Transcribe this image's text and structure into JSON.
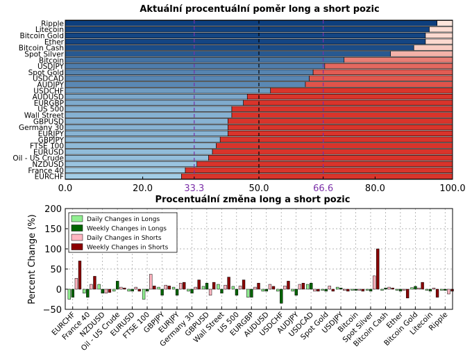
{
  "chart_data": [
    {
      "type": "bar",
      "orientation": "horizontal-stacked",
      "title": "Aktuální procentuální poměr long a short pozic",
      "categories": [
        "Ripple",
        "Litecoin",
        "Bitcoin Gold",
        "Ether",
        "Bitcoin Cash",
        "Spot Silver",
        "Bitcoin",
        "USDJPY",
        "Spot Gold",
        "USDCAD",
        "AUDJPY",
        "USDCHF",
        "AUDUSD",
        "EURGBP",
        "US 500",
        "Wall Street",
        "GBPUSD",
        "Germany 30",
        "EURJPY",
        "GBPJPY",
        "FTSE 100",
        "EURUSD",
        "Oil - US Crude",
        "NZDUSD",
        "France 40",
        "EURCHF"
      ],
      "series": [
        {
          "values": [
            96,
            94,
            93,
            93,
            90,
            84,
            72,
            67,
            64,
            63,
            62,
            53,
            47,
            46,
            43,
            43,
            42,
            42,
            42,
            40,
            39,
            38,
            37,
            34,
            31,
            30
          ]
        },
        {
          "values": [
            4,
            6,
            7,
            7,
            10,
            16,
            28,
            33,
            36,
            37,
            38,
            47,
            53,
            54,
            57,
            57,
            58,
            58,
            58,
            60,
            61,
            62,
            63,
            66,
            69,
            70
          ]
        }
      ],
      "xlim": [
        0,
        100
      ],
      "xticks": [
        "0.0",
        "20.0",
        "33.3",
        "50.0",
        "66.6",
        "80.0",
        "100.0"
      ],
      "reference_lines": [
        33.3,
        50,
        66.6
      ]
    },
    {
      "type": "bar",
      "title": "Procentuální změna long a short pozic",
      "ylabel": "Percent Change (%)",
      "ylim": [
        -50,
        200
      ],
      "yticks": [
        "−50",
        "0",
        "50",
        "100",
        "150",
        "200"
      ],
      "grid": true,
      "legend": "top-left",
      "categories": [
        "EURCHF",
        "France 40",
        "NZDUSD",
        "Oil - US Crude",
        "EURUSD",
        "FTSE 100",
        "GBPJPY",
        "EURJPY",
        "Germany 30",
        "GBPUSD",
        "Wall Street",
        "US 500",
        "EURGBP",
        "AUDUSD",
        "USDCHF",
        "AUDJPY",
        "USDCAD",
        "Spot Gold",
        "USDJPY",
        "Bitcoin",
        "Spot Silver",
        "Bitcoin Cash",
        "Ether",
        "Bitcoin Gold",
        "Litecoin",
        "Ripple"
      ],
      "series": [
        {
          "name": "Daily Changes in Longs",
          "values": [
            -25,
            -10,
            12,
            -5,
            -5,
            -25,
            5,
            5,
            -5,
            7,
            12,
            7,
            -20,
            -5,
            -5,
            -5,
            12,
            -3,
            5,
            -3,
            -3,
            -3,
            -3,
            4,
            -3,
            -3
          ]
        },
        {
          "name": "Weekly Changes in Longs",
          "values": [
            -20,
            -20,
            -10,
            20,
            -5,
            -5,
            -15,
            -15,
            -10,
            15,
            -10,
            -15,
            -20,
            -5,
            -35,
            -15,
            15,
            -5,
            3,
            -3,
            -5,
            3,
            -5,
            7,
            -5,
            -3
          ]
        },
        {
          "name": "Daily Changes in Shorts",
          "values": [
            27,
            12,
            -10,
            5,
            5,
            37,
            10,
            15,
            5,
            -15,
            10,
            8,
            5,
            12,
            8,
            12,
            -5,
            8,
            -3,
            -3,
            33,
            5,
            -3,
            3,
            3,
            -12
          ]
        },
        {
          "name": "Weekly Changes in Shorts",
          "values": [
            70,
            32,
            -8,
            3,
            -5,
            8,
            8,
            17,
            23,
            17,
            30,
            23,
            15,
            7,
            20,
            15,
            -5,
            -5,
            -5,
            -5,
            100,
            3,
            -22,
            17,
            -20,
            -5
          ]
        }
      ],
      "colors": [
        "#90ee90",
        "#006400",
        "#ffb6c1",
        "#8b0000"
      ]
    }
  ]
}
